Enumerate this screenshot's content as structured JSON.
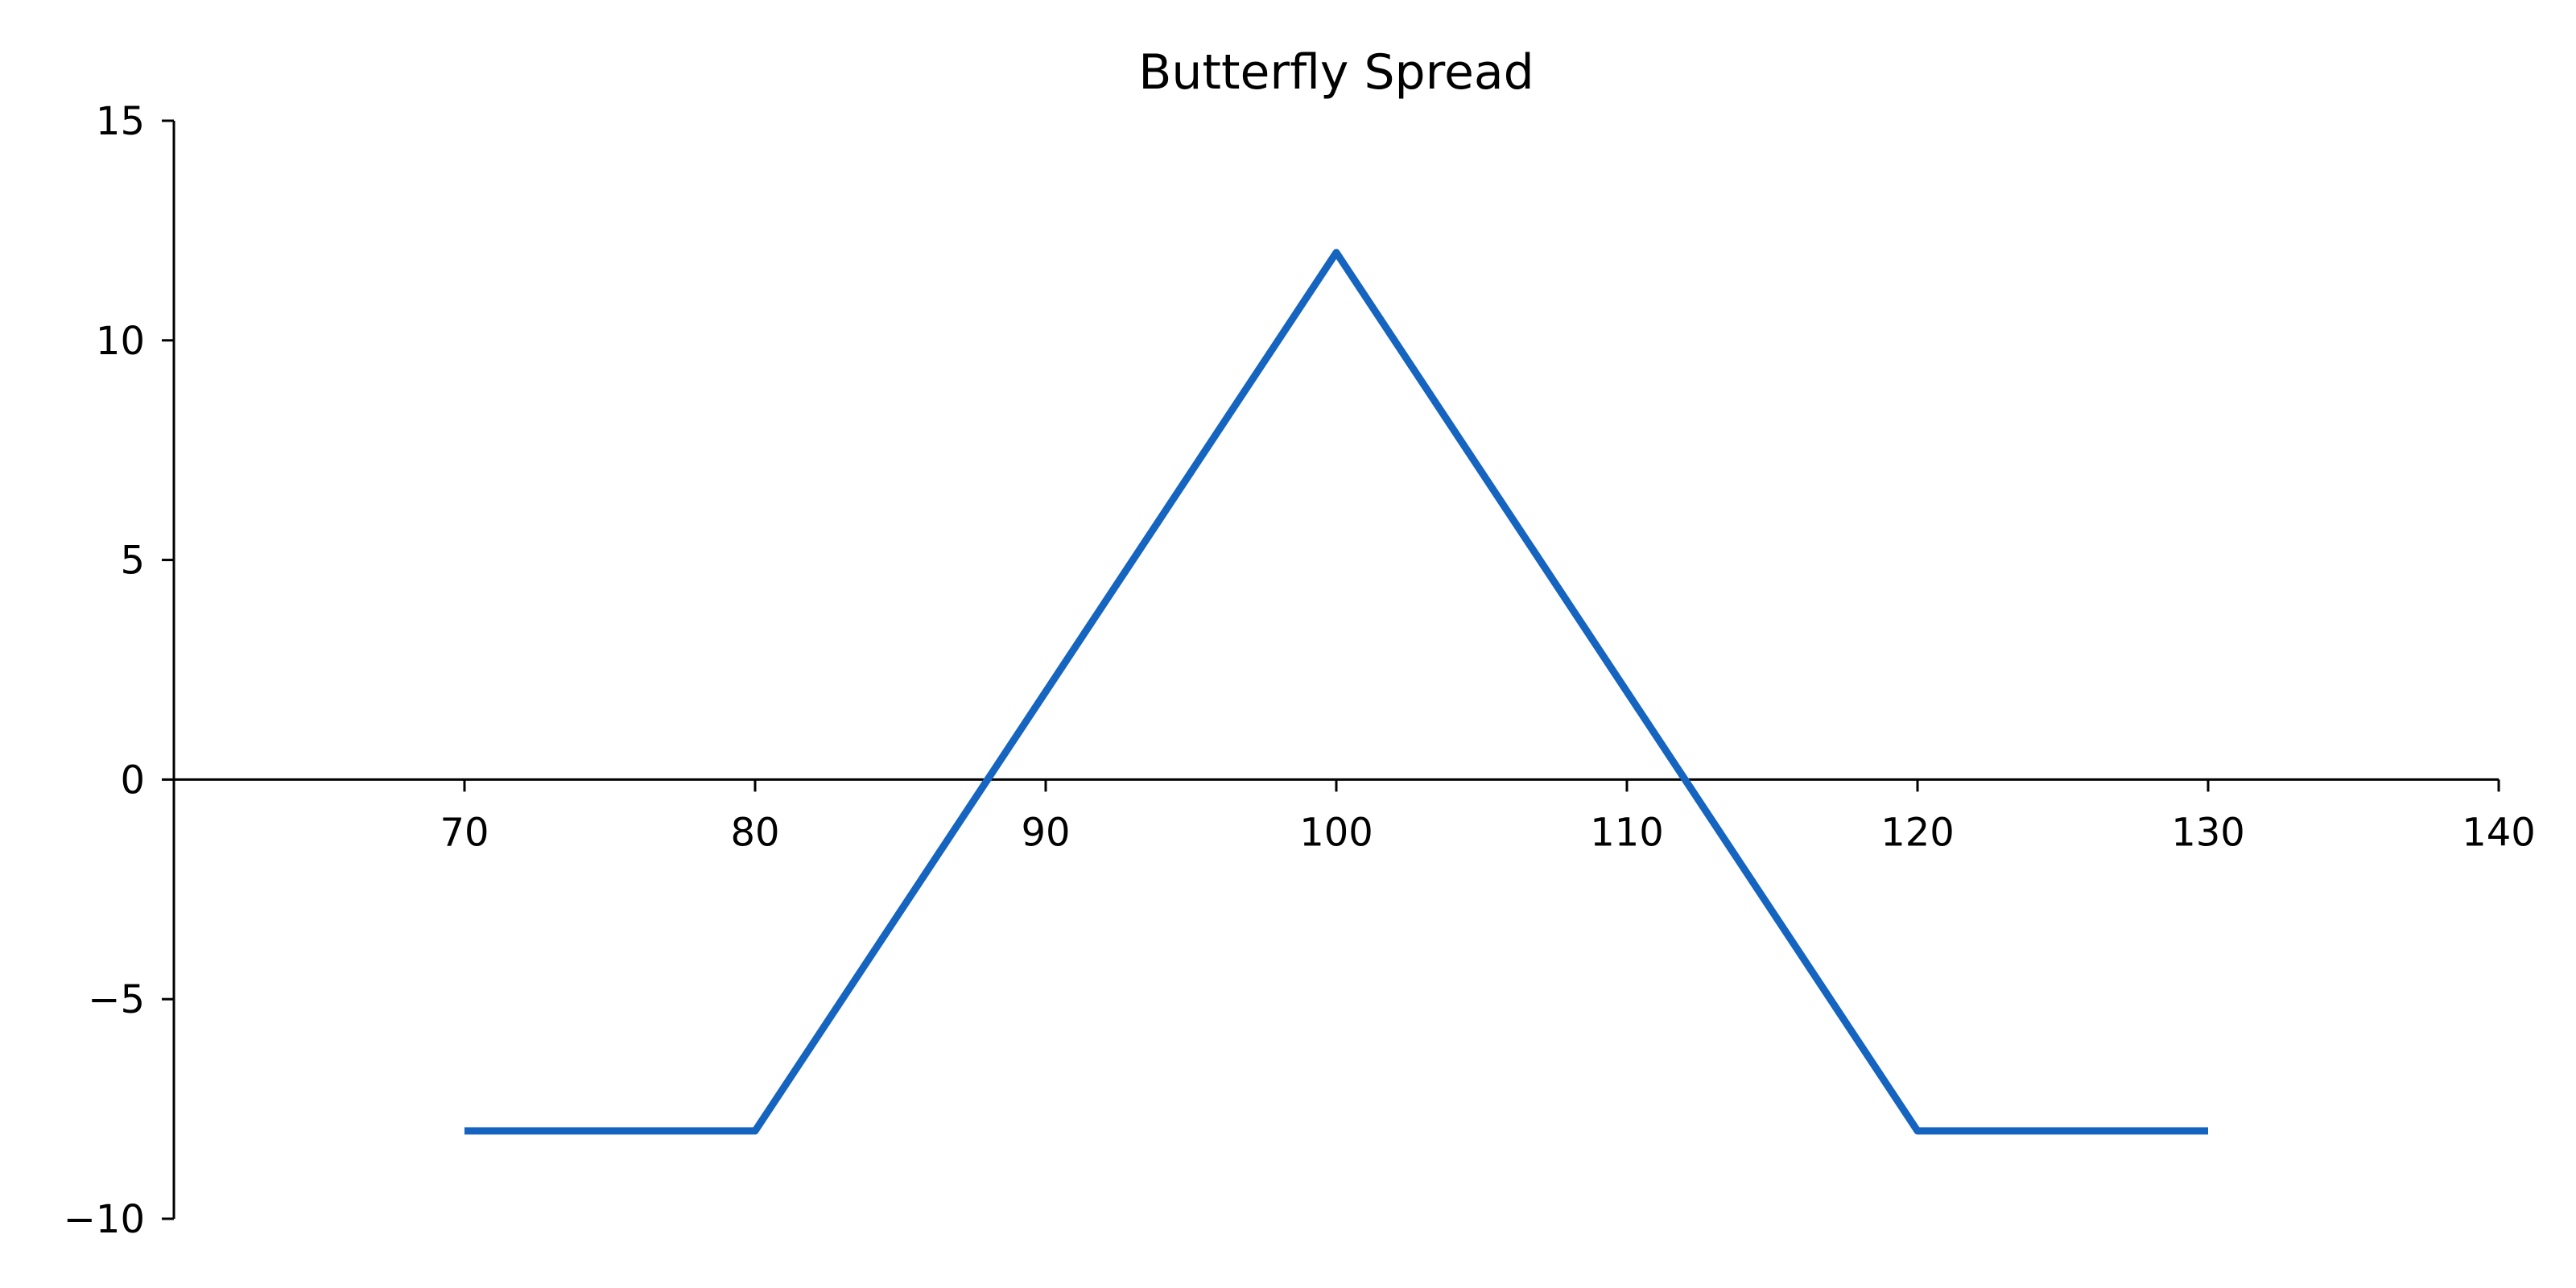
{
  "chart_data": {
    "type": "line",
    "title": "Butterfly Spread",
    "xlabel": "",
    "ylabel": "",
    "xlim": [
      60,
      140
    ],
    "ylim": [
      -10,
      15
    ],
    "x_ticks": [
      70,
      80,
      90,
      100,
      110,
      120,
      130,
      140
    ],
    "y_ticks": [
      -10,
      -5,
      0,
      5,
      10,
      15
    ],
    "y_tick_labels": [
      "−10",
      "−5",
      "0",
      "5",
      "10",
      "15"
    ],
    "grid": false,
    "legend": "none",
    "series": [
      {
        "color": "#1565C0",
        "x": [
          70,
          80,
          100,
          120,
          130
        ],
        "y": [
          -8,
          -8,
          12,
          -8,
          -8
        ]
      }
    ]
  }
}
